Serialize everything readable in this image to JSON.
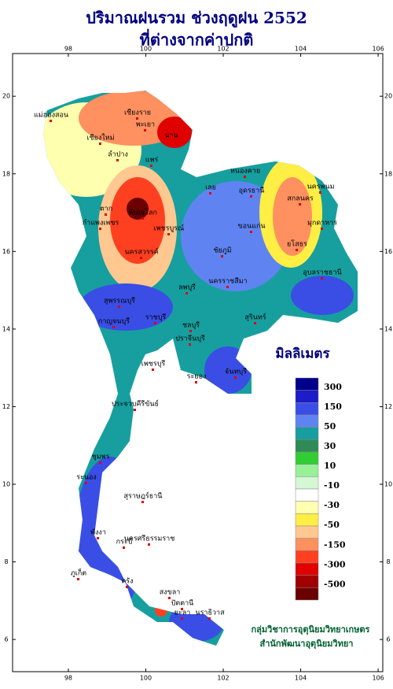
{
  "header": {
    "title": "ปริมาณฝนรวม ช่วงฤดูฝน 2552",
    "subtitle": "ที่ต่างจากค่าปกติ"
  },
  "map": {
    "xlim": [
      96.56,
      106.12
    ],
    "ylim": [
      5.17,
      21.1
    ],
    "xticks": [
      98,
      100,
      102,
      104,
      106
    ],
    "yticks": [
      6,
      8,
      10,
      12,
      14,
      16,
      18,
      20
    ]
  },
  "places": [
    "เชียงราย",
    "แม่ฮ่องสอน",
    "เชียงใหม่",
    "ลำปาง",
    "พะเยา",
    "น่าน",
    "แพร่",
    "ตาก",
    "พิษณุโลก",
    "กำแพงเพชร",
    "เพชรบูรณ์",
    "นครสวรรค์",
    "เลย",
    "หนองคาย",
    "อุดรธานี",
    "สกลนคร",
    "นครพนม",
    "ขอนแก่น",
    "มุกดาหาร",
    "ชัยภูมิ",
    "ยโสธร",
    "อุบลราชธานี",
    "นครราชสีมา",
    "สุรินทร์",
    "ลพบุรี",
    "สุพรรณบุรี",
    "กาญจนบุรี",
    "ราชบุรี",
    "ปราจีนบุรี",
    "ชลบุรี",
    "ระยอง",
    "จันทบุรี",
    "เพชรบุรี",
    "ประจวบคีรีขันธ์",
    "ชุมพร",
    "ระนอง",
    "สุราษฎร์ธานี",
    "พังงา",
    "นครศรีธรรมราช",
    "ภูเก็ต",
    "กระบี่",
    "ตรัง",
    "สงขลา",
    "ปัตตานี",
    "ยะลา",
    "นราธิวาส"
  ],
  "legend": {
    "title": "มิลลิเมตร",
    "labels": [
      300,
      150,
      50,
      30,
      10,
      -10,
      -30,
      -50,
      -150,
      -300,
      -500
    ],
    "colors": [
      "#00008b",
      "#1c1cc8",
      "#3a4ee6",
      "#5f84f2",
      "#179f9f",
      "#2e8b57",
      "#32cd32",
      "#98f098",
      "#d4f7d4",
      "#ffffff",
      "#ffffb0",
      "#ffee44",
      "#ffc890",
      "#ff9060",
      "#ff4020",
      "#e00000",
      "#a00000",
      "#6a0000"
    ]
  },
  "credit": [
    "กลุ่มวิชาการอุตุนิยมวิทยาเกษตร",
    "สำนักพัฒนาอุตุนิยมวิทยา"
  ]
}
